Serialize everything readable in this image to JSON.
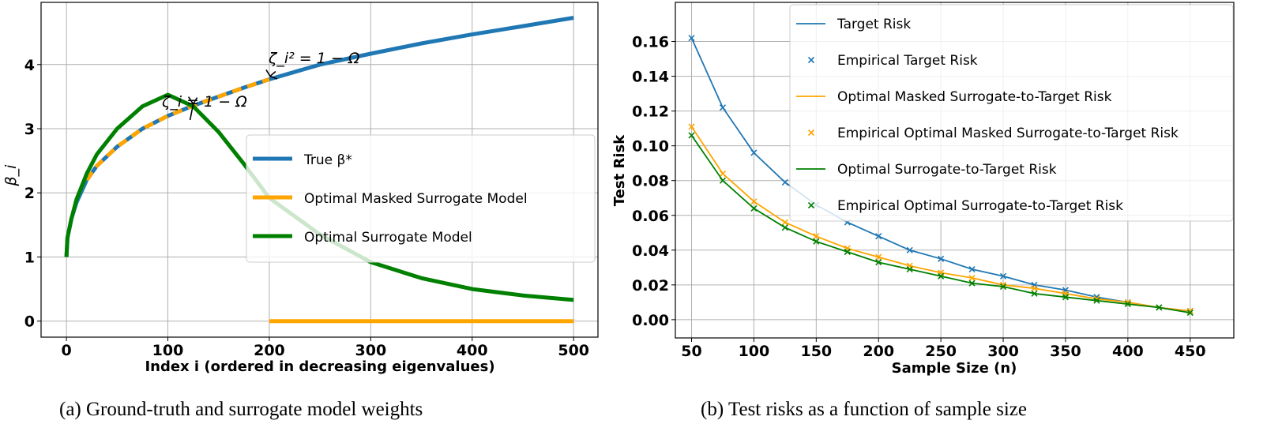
{
  "colors": {
    "blue": "#1f77b4",
    "orange": "#ffa500",
    "green": "#008000",
    "grid": "#b0b0b0"
  },
  "captions": {
    "a": "(a) Ground-truth and surrogate model weights",
    "b": "(b) Test risks as a function of sample size"
  },
  "chart_data": [
    {
      "type": "line",
      "xlabel": "Index i (ordered in decreasing eigenvalues)",
      "ylabel": "β_i",
      "xlim": [
        -25,
        524
      ],
      "ylim": [
        -0.25,
        4.97
      ],
      "xticks": [
        "0",
        "100",
        "200",
        "300",
        "400",
        "500"
      ],
      "yticks": [
        "0",
        "1",
        "2",
        "3",
        "4"
      ],
      "grid": true,
      "legend_position": "center-right",
      "x": [
        0,
        1,
        5,
        10,
        20,
        30,
        50,
        75,
        100,
        125,
        150,
        175,
        200,
        250,
        300,
        350,
        400,
        450,
        500
      ],
      "series": [
        {
          "name": "True β*",
          "color": "blue",
          "values": [
            1.0,
            1.3,
            1.6,
            1.85,
            2.2,
            2.42,
            2.72,
            3.0,
            3.2,
            3.36,
            3.5,
            3.64,
            3.77,
            4.0,
            4.17,
            4.33,
            4.47,
            4.6,
            4.73
          ]
        },
        {
          "name": "Optimal Masked Surrogate Model",
          "color": "orange",
          "values": [
            1.0,
            1.3,
            1.6,
            1.85,
            2.2,
            2.42,
            2.72,
            3.0,
            3.2,
            3.36,
            3.5,
            3.64,
            3.77,
            0,
            0,
            0,
            0,
            0,
            0
          ],
          "note": "equals β* for i<=200, 0 for i>200"
        },
        {
          "name": "Optimal Surrogate Model",
          "color": "green",
          "values": [
            1.0,
            1.3,
            1.6,
            1.9,
            2.3,
            2.6,
            3.0,
            3.35,
            3.53,
            3.35,
            2.95,
            2.45,
            1.92,
            1.35,
            0.92,
            0.67,
            0.5,
            0.4,
            0.33
          ]
        }
      ],
      "annotations": [
        {
          "text": "ζ_i = 1 − Ω",
          "x": 125,
          "y": 3.35
        },
        {
          "text": "ζ_i² = 1 − Ω",
          "x": 200,
          "y": 3.77
        }
      ]
    },
    {
      "type": "line",
      "xlabel": "Sample Size (n)",
      "ylabel": "Test Risk",
      "xlim": [
        37,
        485
      ],
      "ylim": [
        -0.0105,
        0.1825
      ],
      "xticks": [
        "50",
        "100",
        "150",
        "200",
        "250",
        "300",
        "350",
        "400",
        "450"
      ],
      "yticks": [
        "0.00",
        "0.02",
        "0.04",
        "0.06",
        "0.08",
        "0.10",
        "0.12",
        "0.14",
        "0.16"
      ],
      "grid": true,
      "legend_position": "top-right",
      "x": [
        50,
        75,
        100,
        125,
        150,
        175,
        200,
        225,
        250,
        275,
        300,
        325,
        350,
        375,
        400,
        425,
        450
      ],
      "series": [
        {
          "name": "Target Risk",
          "empirical_name": "Empirical Target Risk",
          "color": "blue",
          "values": [
            0.162,
            0.122,
            0.096,
            0.079,
            0.066,
            0.056,
            0.048,
            0.04,
            0.035,
            0.029,
            0.025,
            0.02,
            0.017,
            0.013,
            0.01,
            0.007,
            0.005
          ]
        },
        {
          "name": "Optimal Masked Surrogate-to-Target Risk",
          "empirical_name": "Empirical Optimal Masked Surrogate-to-Target Risk",
          "color": "orange",
          "values": [
            0.111,
            0.084,
            0.068,
            0.056,
            0.048,
            0.041,
            0.036,
            0.031,
            0.027,
            0.024,
            0.02,
            0.018,
            0.015,
            0.012,
            0.01,
            0.007,
            0.005
          ]
        },
        {
          "name": "Optimal Surrogate-to-Target Risk",
          "empirical_name": "Empirical Optimal Surrogate-to-Target Risk",
          "color": "green",
          "values": [
            0.106,
            0.08,
            0.064,
            0.053,
            0.045,
            0.039,
            0.033,
            0.029,
            0.025,
            0.021,
            0.019,
            0.015,
            0.013,
            0.011,
            0.009,
            0.007,
            0.004
          ]
        }
      ]
    }
  ]
}
